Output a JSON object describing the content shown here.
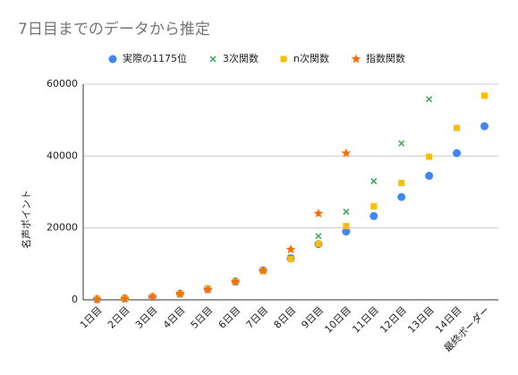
{
  "chart_data": {
    "type": "scatter",
    "title": "7日目までのデータから推定",
    "y_label": "名声ポイント",
    "categories": [
      "1日目",
      "2日目",
      "3日目",
      "4日目",
      "5日目",
      "6日目",
      "7日目",
      "8日目",
      "9日目",
      "10日目",
      "11日目",
      "12日目",
      "13日目",
      "14日目",
      "最終ボーダー"
    ],
    "series": [
      {
        "name": "実際の1175位",
        "color": "#4285f4",
        "marker": "circle",
        "values": [
          200,
          400,
          800,
          1700,
          3000,
          5100,
          8200,
          11500,
          15500,
          19000,
          23300,
          28600,
          34500,
          40800,
          48300
        ]
      },
      {
        "name": "3次関数",
        "color": "#34a853",
        "marker": "x",
        "values": [
          100,
          300,
          800,
          1700,
          3100,
          5200,
          8000,
          11800,
          17700,
          24500,
          33000,
          43500,
          55800,
          null,
          null
        ]
      },
      {
        "name": "n次関数",
        "color": "#fbbc04",
        "marker": "square",
        "values": [
          200,
          400,
          900,
          1700,
          3100,
          5100,
          8000,
          11300,
          15600,
          20500,
          26000,
          32500,
          39800,
          47800,
          56800
        ]
      },
      {
        "name": "指数関数",
        "color": "#ff6d01",
        "marker": "star",
        "values": [
          100,
          300,
          800,
          1700,
          2800,
          5000,
          8100,
          14000,
          24000,
          40800,
          null,
          null,
          null,
          null,
          null
        ]
      }
    ],
    "ylim": [
      0,
      60000
    ],
    "yticks": [
      0,
      20000,
      40000,
      60000
    ],
    "grid": true
  }
}
